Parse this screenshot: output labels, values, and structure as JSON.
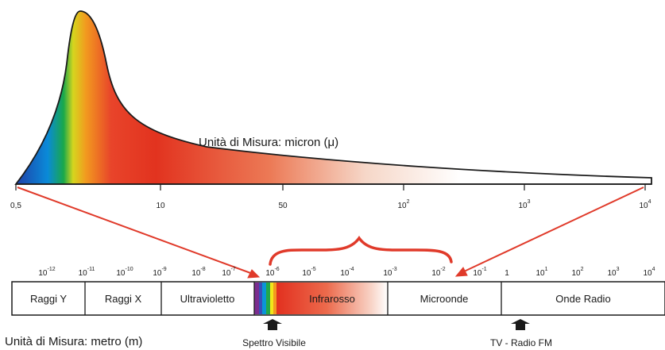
{
  "top_chart": {
    "unit_label": "Unità di Misura: micron (μ)",
    "ticks": [
      {
        "base": "0,5",
        "exp": ""
      },
      {
        "base": "10",
        "exp": ""
      },
      {
        "base": "50",
        "exp": ""
      },
      {
        "base": "10",
        "exp": "2"
      },
      {
        "base": "10",
        "exp": "3"
      },
      {
        "base": "10",
        "exp": "4"
      }
    ]
  },
  "spectrum": {
    "ticks": [
      {
        "base": "10",
        "exp": "-12"
      },
      {
        "base": "10",
        "exp": "-11"
      },
      {
        "base": "10",
        "exp": "-10"
      },
      {
        "base": "10",
        "exp": "-9"
      },
      {
        "base": "10",
        "exp": "-8"
      },
      {
        "base": "10",
        "exp": "-7"
      },
      {
        "base": "10",
        "exp": "-6"
      },
      {
        "base": "10",
        "exp": "-5"
      },
      {
        "base": "10",
        "exp": "-4"
      },
      {
        "base": "10",
        "exp": "-3"
      },
      {
        "base": "10",
        "exp": "-2"
      },
      {
        "base": "10",
        "exp": "-1"
      },
      {
        "base": "1",
        "exp": ""
      },
      {
        "base": "10",
        "exp": "1"
      },
      {
        "base": "10",
        "exp": "2"
      },
      {
        "base": "10",
        "exp": "3"
      },
      {
        "base": "10",
        "exp": "4"
      }
    ],
    "bands": [
      "Raggi Y",
      "Raggi X",
      "Ultravioletto",
      "Infrarosso",
      "Microonde",
      "Onde Radio"
    ],
    "unit_label": "Unità di Misura: metro (m)",
    "markers": [
      "Spettro Visibile",
      "TV - Radio FM"
    ]
  },
  "colors": {
    "arrow": "#e03a2a",
    "outline": "#1a1a1a",
    "marker": "#1a1a1a"
  }
}
